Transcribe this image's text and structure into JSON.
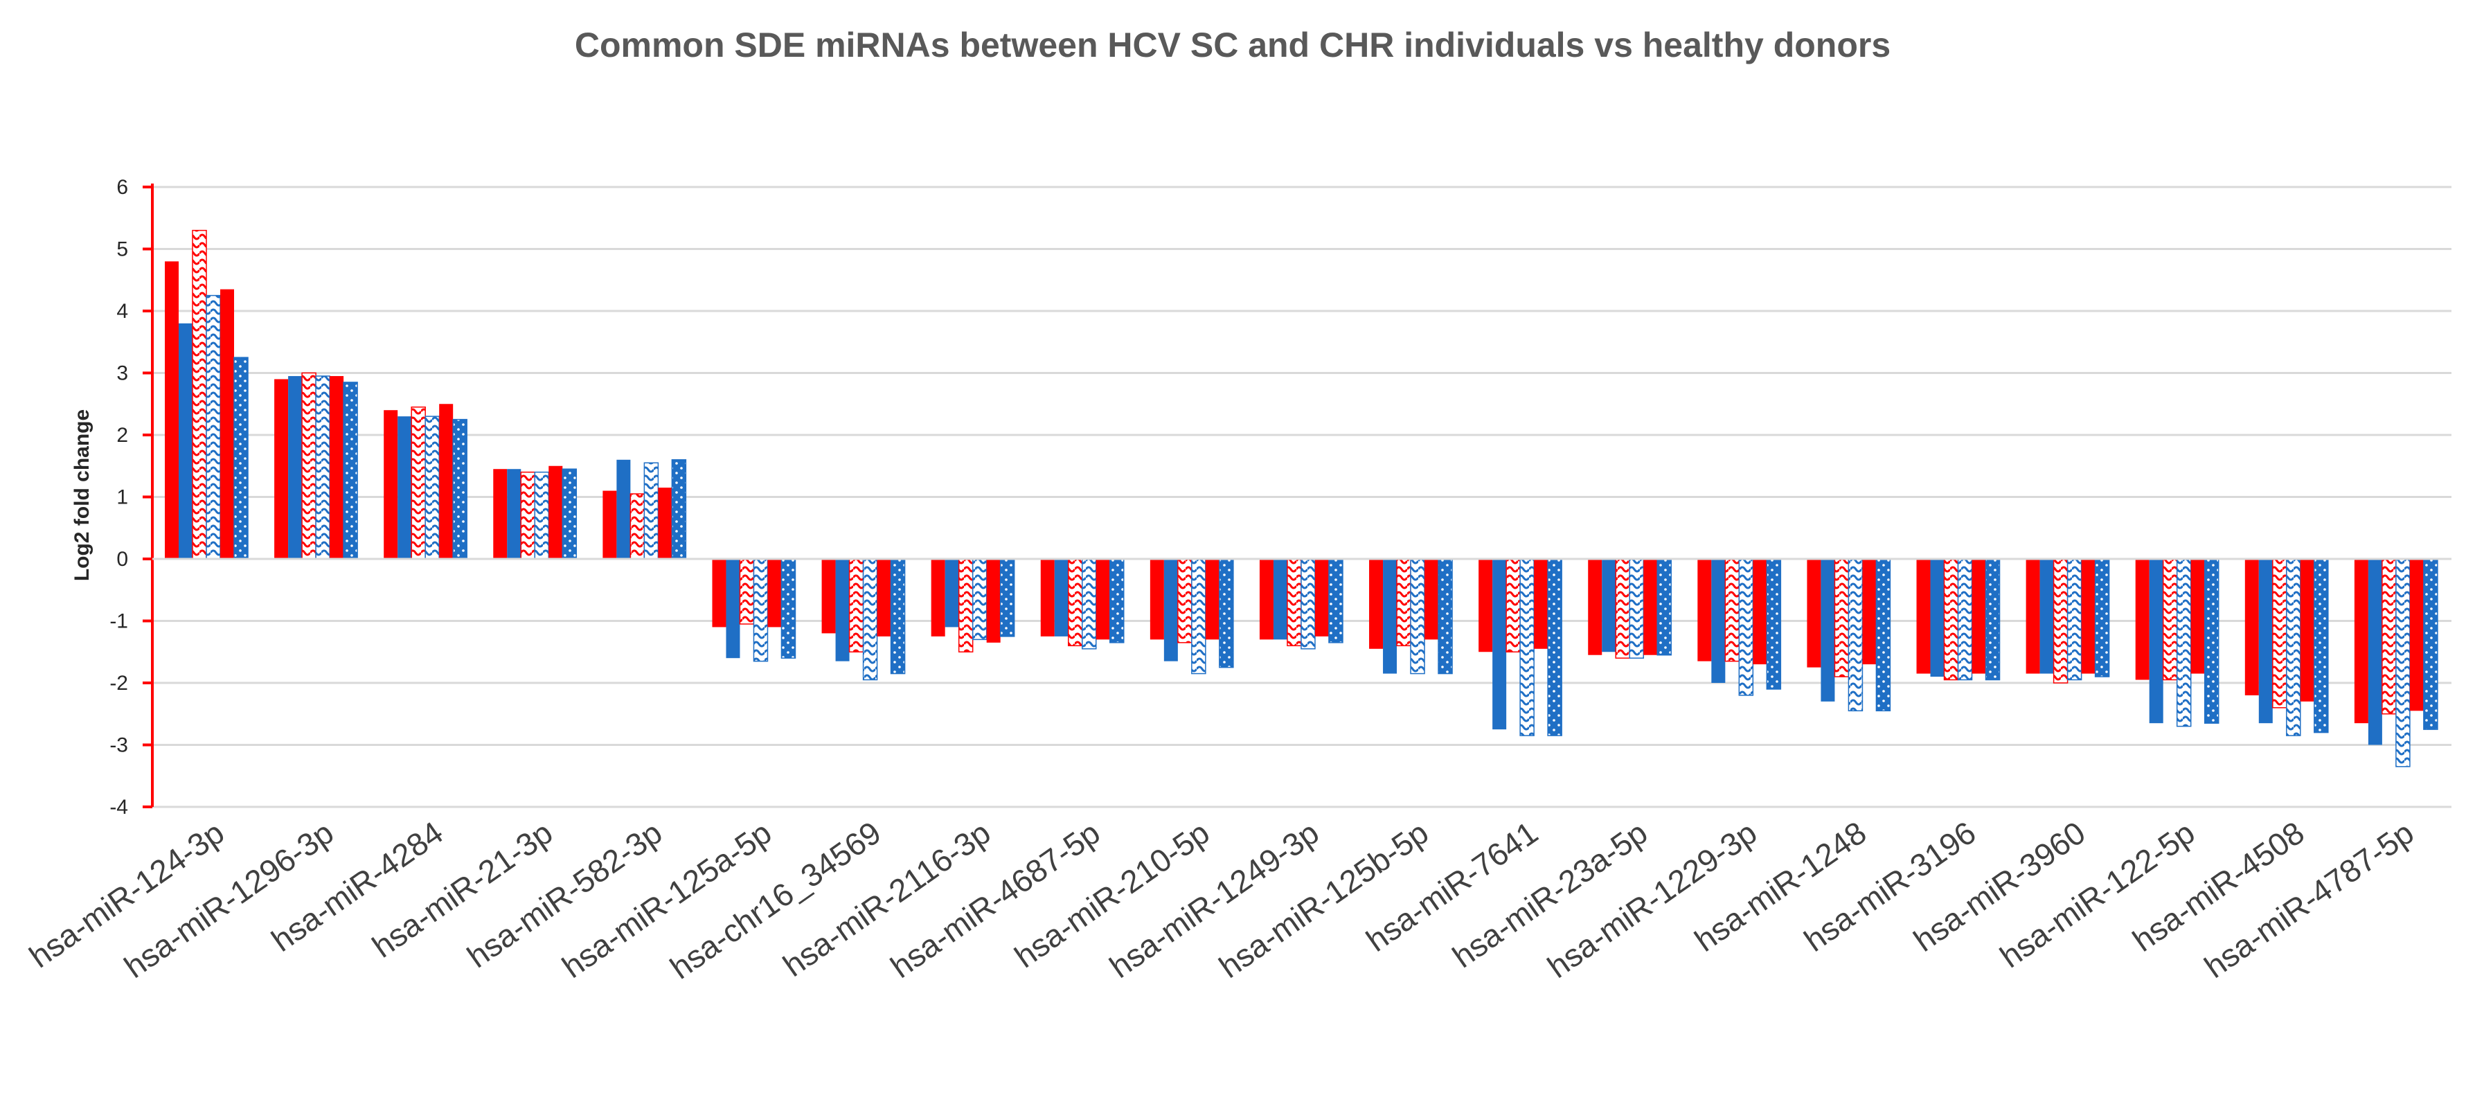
{
  "chart_data": {
    "type": "bar",
    "title": "Common SDE miRNAs between HCV SC and CHR individuals vs healthy donors",
    "xlabel": "",
    "ylabel": "Log2 fold change",
    "ylim": [
      -4,
      6
    ],
    "yticks": [
      "6",
      "5",
      "4",
      "3",
      "2",
      "1",
      "0",
      "-1",
      "-2",
      "-3",
      "-4"
    ],
    "ytick_values": [
      6,
      5,
      4,
      3,
      2,
      1,
      0,
      -1,
      -2,
      -3,
      -4
    ],
    "grid": true,
    "legend": "none",
    "categories": [
      "hsa-miR-124-3p",
      "hsa-miR-1296-3p",
      "hsa-miR-4284",
      "hsa-miR-21-3p",
      "hsa-miR-582-3p",
      "hsa-miR-125a-5p",
      "hsa-chr16_34569",
      "hsa-miR-2116-3p",
      "hsa-miR-4687-5p",
      "hsa-miR-210-5p",
      "hsa-miR-1249-3p",
      "hsa-miR-125b-5p",
      "hsa-miR-7641",
      "hsa-miR-23a-5p",
      "hsa-miR-1229-3p",
      "hsa-miR-1248",
      "hsa-miR-3196",
      "hsa-miR-3960",
      "hsa-miR-122-5p",
      "hsa-miR-4508",
      "hsa-miR-4787-5p"
    ],
    "series": [
      {
        "color": "#ff0000",
        "pattern": "solid",
        "values": [
          4.8,
          2.9,
          2.4,
          1.45,
          1.1,
          -1.1,
          -1.2,
          -1.25,
          -1.25,
          -1.3,
          -1.3,
          -1.45,
          -1.5,
          -1.55,
          -1.65,
          -1.75,
          -1.85,
          -1.85,
          -1.95,
          -2.2,
          -2.65
        ]
      },
      {
        "color": "#1f6fc5",
        "pattern": "solid",
        "values": [
          3.8,
          2.95,
          2.3,
          1.45,
          1.6,
          -1.6,
          -1.65,
          -1.1,
          -1.25,
          -1.65,
          -1.3,
          -1.85,
          -2.75,
          -1.5,
          -2.0,
          -2.3,
          -1.9,
          -1.85,
          -2.65,
          -2.65,
          -3.0
        ]
      },
      {
        "color": "#ff0000",
        "pattern": "wave",
        "values": [
          5.3,
          3.0,
          2.45,
          1.4,
          1.05,
          -1.05,
          -1.5,
          -1.5,
          -1.4,
          -1.35,
          -1.4,
          -1.4,
          -1.5,
          -1.6,
          -1.65,
          -1.9,
          -1.95,
          -2.0,
          -1.95,
          -2.4,
          -2.5
        ]
      },
      {
        "color": "#1f6fc5",
        "pattern": "wave",
        "values": [
          4.25,
          2.95,
          2.3,
          1.4,
          1.55,
          -1.65,
          -1.95,
          -1.3,
          -1.45,
          -1.85,
          -1.45,
          -1.85,
          -2.85,
          -1.6,
          -2.2,
          -2.45,
          -1.95,
          -1.95,
          -2.7,
          -2.85,
          -3.35
        ]
      },
      {
        "color": "#ff0000",
        "pattern": "solid",
        "values": [
          4.35,
          2.95,
          2.5,
          1.5,
          1.15,
          -1.1,
          -1.25,
          -1.35,
          -1.3,
          -1.3,
          -1.25,
          -1.3,
          -1.45,
          -1.55,
          -1.7,
          -1.7,
          -1.85,
          -1.85,
          -1.85,
          -2.3,
          -2.45
        ]
      },
      {
        "color": "#1f6fc5",
        "pattern": "dots",
        "values": [
          3.25,
          2.85,
          2.25,
          1.45,
          1.6,
          -1.6,
          -1.85,
          -1.25,
          -1.35,
          -1.75,
          -1.35,
          -1.85,
          -2.85,
          -1.55,
          -2.1,
          -2.45,
          -1.95,
          -1.9,
          -2.65,
          -2.8,
          -2.75
        ]
      }
    ]
  }
}
